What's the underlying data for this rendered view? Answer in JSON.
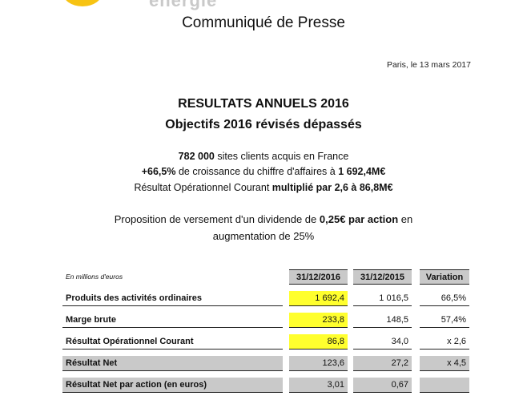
{
  "header": {
    "logo_text": "energie",
    "doc_type": "Communiqué de Presse",
    "date": "Paris, le 13 mars 2017"
  },
  "headline": {
    "line1": "RESULTATS ANNUELS 2016",
    "line2": "Objectifs 2016 révisés dépassés"
  },
  "key_points": {
    "kp1_bold": "782 000",
    "kp1_text": " sites clients acquis en France",
    "kp2_bold1": "+66,5%",
    "kp2_text": " de croissance du chiffre d'affaires à ",
    "kp2_bold2": "1 692,4M€",
    "kp3_text": "Résultat Opérationnel Courant ",
    "kp3_bold": "multiplié par 2,6 à 86,8M€"
  },
  "dividend": {
    "text1": "Proposition de versement d'un dividende de ",
    "bold": "0,25€ par action",
    "text2": " en",
    "line2": "augmentation de 25%"
  },
  "table": {
    "unit_label": "En millions d'euros",
    "col1": "31/12/2016",
    "col2": "31/12/2015",
    "col3": "Variation",
    "rows": [
      {
        "label": "Produits des activités ordinaires",
        "v2016": "1 692,4",
        "v2015": "1 016,5",
        "variation": "66,5%"
      },
      {
        "label": "Marge brute",
        "v2016": "233,8",
        "v2015": "148,5",
        "variation": "57,4%"
      },
      {
        "label": "Résultat Opérationnel Courant",
        "v2016": "86,8",
        "v2015": "34,0",
        "variation": "x 2,6"
      },
      {
        "label": "Résultat Net",
        "v2016": "123,6",
        "v2015": "27,2",
        "variation": "x 4,5"
      },
      {
        "label": "Résultat Net par action (en euros)",
        "v2016": "3,01",
        "v2015": "0,67",
        "variation": ""
      }
    ]
  },
  "colors": {
    "logo_yellow": "#f7c313",
    "highlight_yellow": "#ffff2e",
    "header_grey": "#c9c9c9"
  }
}
